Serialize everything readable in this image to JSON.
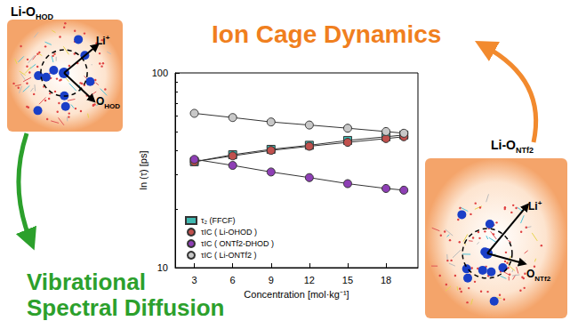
{
  "chart_data": {
    "type": "line",
    "x_label": "Concentration [mol·kg⁻¹]",
    "y_label": "ln (τ) [ps]",
    "x": [
      3,
      6,
      9,
      12,
      15,
      18,
      19.4
    ],
    "series": [
      {
        "name": "τ₂ (FFCF)",
        "color": "#3fb8b0",
        "marker": "square",
        "values": [
          35,
          38,
          40.5,
          42.5,
          45,
          47,
          48
        ]
      },
      {
        "name": "τIC ( Li-OHOD )",
        "color": "#c0504d",
        "marker": "circle",
        "values": [
          35,
          37.5,
          40,
          42,
          44,
          46,
          47
        ]
      },
      {
        "name": "τIC ( ONTf2-DHOD )",
        "color": "#8e3fb5",
        "marker": "circle",
        "values": [
          36,
          33.5,
          31,
          29,
          27,
          25.5,
          25
        ]
      },
      {
        "name": "τIC ( Li-ONTf2 )",
        "color": "#c8c8c8",
        "marker": "circle",
        "values": [
          62,
          59,
          56,
          54,
          52,
          50,
          49
        ]
      }
    ],
    "xlim": [
      1.5,
      20.5
    ],
    "xticks": [
      3,
      6,
      9,
      12,
      15,
      18
    ],
    "ylim": [
      10,
      100
    ],
    "yticks": [
      10,
      100
    ],
    "log": "y",
    "grid": false,
    "legend": "lower left",
    "line_style": "solid"
  },
  "illustration": {
    "title_top": "Ion Cage Dynamics",
    "title_bottom": [
      "Vibrational",
      "Spectral Diffusion"
    ],
    "left_panel": {
      "title": [
        "Li-O",
        "HOD"
      ],
      "ion": [
        "Li",
        "+"
      ],
      "ligand": [
        "O",
        "HOD"
      ]
    },
    "right_panel": {
      "title": [
        "Li-O",
        "NTf2"
      ],
      "ion": [
        "Li",
        "+"
      ],
      "ligand": [
        "O",
        "NTf2"
      ]
    }
  }
}
